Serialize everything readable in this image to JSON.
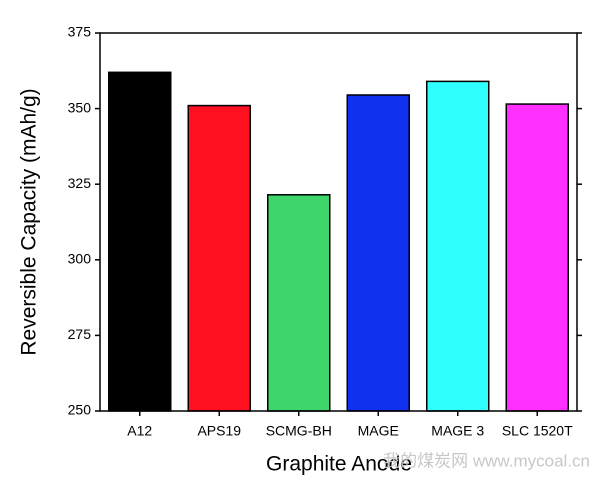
{
  "chart_data": {
    "type": "bar",
    "xlabel": "Graphite Anode",
    "ylabel": "Reversible Capacity (mAh/g)",
    "categories": [
      "A12",
      "APS19",
      "SCMG-BH",
      "MAGE",
      "MAGE 3",
      "SLC 1520T"
    ],
    "values": [
      362,
      351,
      321.5,
      354.5,
      359,
      351.5
    ],
    "colors": [
      "#000000",
      "#ff1020",
      "#3ed66a",
      "#1030f0",
      "#30ffff",
      "#ff30ff"
    ],
    "ylim": [
      250,
      375
    ],
    "yticks": [
      250,
      275,
      300,
      325,
      350,
      375
    ],
    "watermark": "我的煤炭网 www.mycoal.cn"
  }
}
